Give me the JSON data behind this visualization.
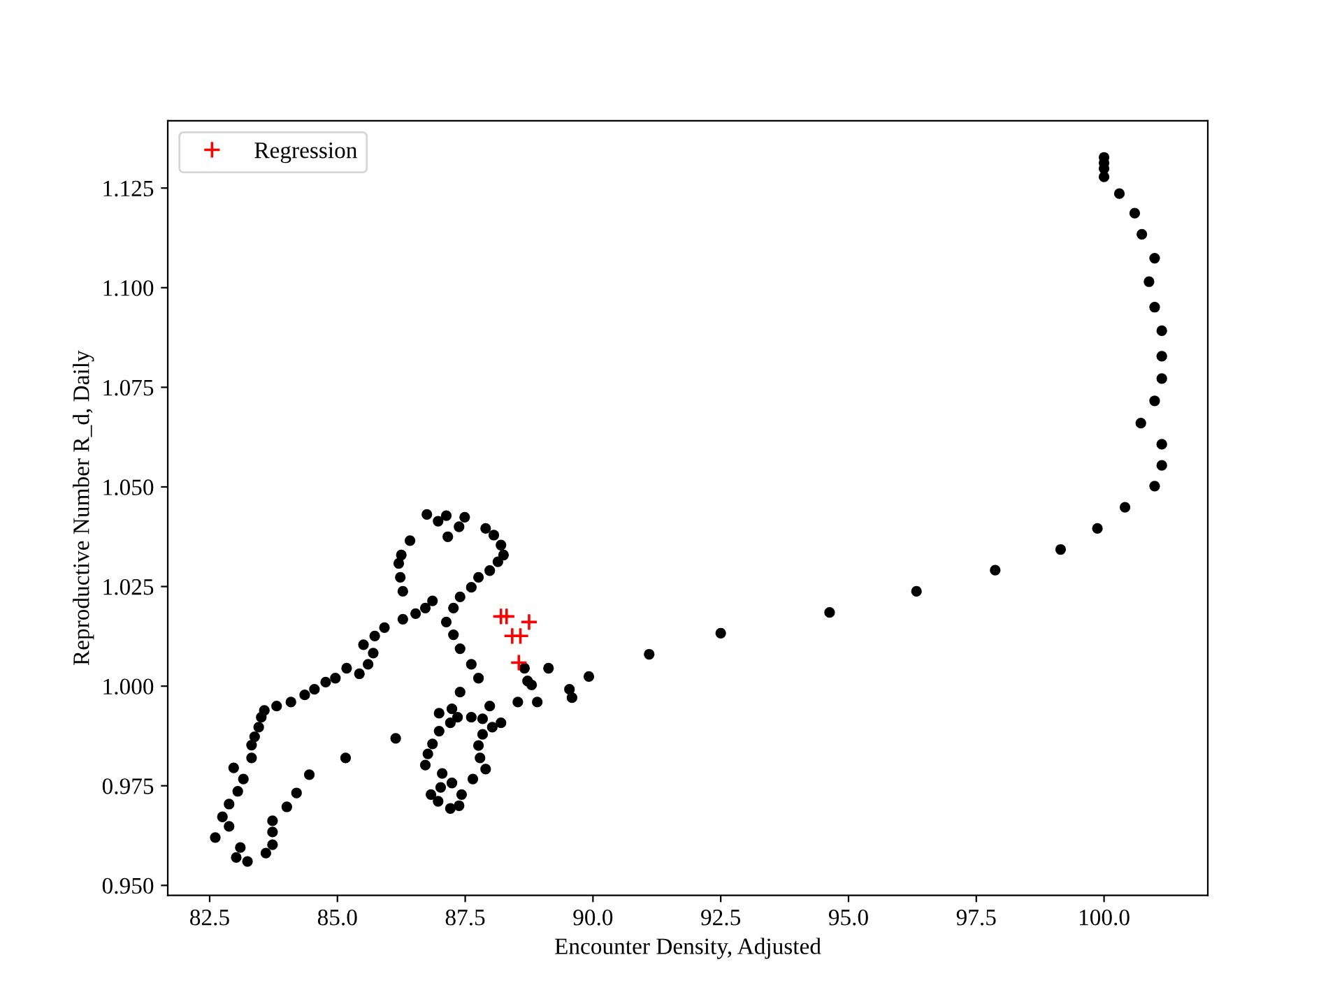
{
  "chart_data": {
    "type": "scatter",
    "xlabel": "Encounter Density, Adjusted",
    "ylabel": "Reproductive Number R_d, Daily",
    "xlim": [
      81.68,
      102.03
    ],
    "ylim": [
      0.9475,
      1.1419
    ],
    "xticks": [
      {
        "value": 82.5,
        "label": "82.5"
      },
      {
        "value": 85.0,
        "label": "85.0"
      },
      {
        "value": 87.5,
        "label": "87.5"
      },
      {
        "value": 90.0,
        "label": "90.0"
      },
      {
        "value": 92.5,
        "label": "92.5"
      },
      {
        "value": 95.0,
        "label": "95.0"
      },
      {
        "value": 97.5,
        "label": "97.5"
      },
      {
        "value": 100.0,
        "label": "100.0"
      }
    ],
    "yticks": [
      {
        "value": 0.95,
        "label": "0.950"
      },
      {
        "value": 0.975,
        "label": "0.975"
      },
      {
        "value": 1.0,
        "label": "1.000"
      },
      {
        "value": 1.025,
        "label": "1.025"
      },
      {
        "value": 1.05,
        "label": "1.050"
      },
      {
        "value": 1.075,
        "label": "1.075"
      },
      {
        "value": 1.1,
        "label": "1.100"
      },
      {
        "value": 1.125,
        "label": "1.125"
      }
    ],
    "grid": false,
    "legend": "top left",
    "series": [
      {
        "color": "#000000",
        "marker": "circle",
        "x": [
          100.0,
          100.0,
          100.0,
          100.0,
          100.3,
          100.6,
          100.74,
          100.99,
          100.88,
          100.99,
          101.13,
          101.13,
          101.13,
          100.99,
          100.72,
          101.13,
          101.13,
          100.99,
          100.41,
          99.87,
          99.15,
          97.87,
          96.33,
          94.63,
          92.5,
          91.1,
          89.92,
          86.42,
          86.25,
          86.2,
          86.23,
          86.28,
          86.28,
          86.53,
          85.92,
          85.73,
          85.51,
          85.7,
          85.6,
          85.43,
          85.18,
          84.96,
          84.77,
          84.55,
          84.36,
          84.09,
          83.81,
          83.57,
          83.51,
          83.46,
          83.38,
          83.32,
          83.32,
          82.97,
          83.16,
          83.05,
          82.88,
          82.75,
          82.88,
          82.61,
          83.1,
          83.02,
          83.24,
          83.6,
          83.73,
          83.73,
          83.73,
          84.01,
          84.2,
          84.45,
          85.16,
          86.14,
          86.75,
          86.97,
          87.13,
          87.49,
          87.38,
          87.16,
          87.9,
          88.06,
          88.2,
          88.25,
          88.14,
          87.98,
          87.76,
          87.62,
          87.4,
          87.27,
          87.13,
          87.27,
          87.4,
          87.62,
          87.76,
          87.4,
          87.24,
          86.99,
          87.35,
          87.21,
          87.62,
          87.84,
          87.98,
          88.2,
          88.03,
          87.84,
          87.76,
          87.79,
          87.9,
          87.65,
          86.99,
          86.86,
          86.77,
          86.72,
          87.05,
          86.83,
          87.02,
          87.24,
          87.43,
          87.38,
          87.21,
          86.97,
          86.72,
          86.86,
          88.66,
          88.72,
          88.8,
          89.13,
          88.53,
          88.91,
          89.54,
          89.59
        ],
        "values": [
          1.1327,
          1.1313,
          1.1299,
          1.1278,
          1.1236,
          1.1187,
          1.1134,
          1.1074,
          1.1015,
          1.0951,
          1.0892,
          1.0828,
          1.0772,
          1.0716,
          1.066,
          1.0607,
          1.0554,
          1.0502,
          1.0449,
          1.0396,
          1.0343,
          1.0291,
          1.0238,
          1.0185,
          1.0133,
          1.008,
          1.0024,
          1.0365,
          1.0329,
          1.0308,
          1.0273,
          1.0238,
          1.0168,
          1.0182,
          1.0147,
          1.0126,
          1.0104,
          1.0083,
          1.0055,
          1.0031,
          1.0045,
          1.002,
          1.001,
          0.9992,
          0.9978,
          0.996,
          0.995,
          0.9939,
          0.9922,
          0.9897,
          0.9873,
          0.9852,
          0.982,
          0.9795,
          0.9767,
          0.9736,
          0.9704,
          0.9672,
          0.9648,
          0.962,
          0.9595,
          0.957,
          0.956,
          0.9581,
          0.9602,
          0.9634,
          0.9662,
          0.9697,
          0.9732,
          0.9778,
          0.982,
          0.9869,
          1.0431,
          1.0414,
          1.0428,
          1.0424,
          1.04,
          1.0375,
          1.0396,
          1.0379,
          1.0354,
          1.0329,
          1.0312,
          1.029,
          1.0273,
          1.0248,
          1.0224,
          1.0196,
          1.0161,
          1.0129,
          1.0094,
          1.0055,
          1.002,
          0.9985,
          0.9943,
          0.9932,
          0.9922,
          0.9908,
          0.9922,
          0.9918,
          0.995,
          0.9908,
          0.9897,
          0.9879,
          0.9851,
          0.982,
          0.9792,
          0.9767,
          0.9887,
          0.9855,
          0.983,
          0.9802,
          0.9781,
          0.9728,
          0.9746,
          0.9757,
          0.9728,
          0.97,
          0.9693,
          0.9711,
          1.0196,
          1.0214,
          1.0045,
          1.0013,
          1.0003,
          1.0045,
          0.996,
          0.996,
          0.9992,
          0.9971
        ]
      },
      {
        "name": "Regression",
        "color": "#ff0000",
        "marker": "cross",
        "x": [
          88.2,
          88.31,
          88.75,
          88.42,
          88.58,
          88.55
        ],
        "values": [
          1.0175,
          1.0175,
          1.0161,
          1.0126,
          1.0126,
          1.0059
        ]
      }
    ]
  }
}
